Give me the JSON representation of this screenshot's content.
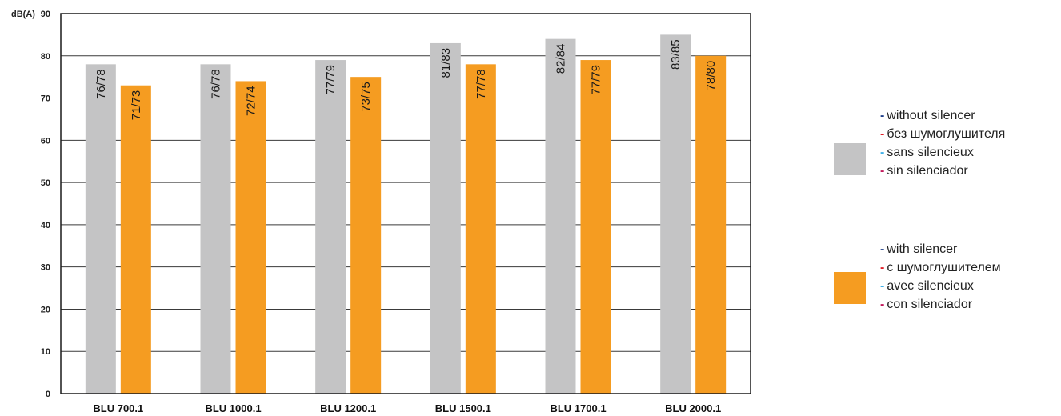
{
  "chart_data": {
    "type": "bar",
    "ylabel": "dB(A)",
    "ylim": [
      0,
      90
    ],
    "yticks": [
      0,
      10,
      20,
      30,
      40,
      50,
      60,
      70,
      80,
      90
    ],
    "grid": true,
    "legend_position": "right",
    "categories": [
      "BLU 700.1",
      "BLU 1000.1",
      "BLU 1200.1",
      "BLU 1500.1",
      "BLU 1700.1",
      "BLU 2000.1"
    ],
    "series": [
      {
        "color": "#c4c4c5",
        "values": [
          78,
          78,
          79,
          83,
          84,
          85
        ],
        "labels": [
          "76/78",
          "76/78",
          "77/79",
          "81/83",
          "82/84",
          "83/85"
        ]
      },
      {
        "color": "#f59c21",
        "values": [
          73,
          74,
          75,
          78,
          79,
          80
        ],
        "labels": [
          "71/73",
          "72/74",
          "73/75",
          "77/78",
          "77/79",
          "78/80"
        ]
      }
    ]
  },
  "legend": [
    {
      "color": "#c4c4c5",
      "lines": [
        {
          "dash": "-",
          "dash_color": "#1f3f8a",
          "text": "without silencer"
        },
        {
          "dash": "-",
          "dash_color": "#e0202a",
          "text": "без шумоглушителя"
        },
        {
          "dash": "-",
          "dash_color": "#40b0e8",
          "text": "sans silencieux"
        },
        {
          "dash": "-",
          "dash_color": "#c2185b",
          "text": "sin silenciador"
        }
      ]
    },
    {
      "color": "#f59c21",
      "lines": [
        {
          "dash": "-",
          "dash_color": "#1f3f8a",
          "text": "with silencer"
        },
        {
          "dash": "-",
          "dash_color": "#e0202a",
          "text": "с шумоглушителем"
        },
        {
          "dash": "-",
          "dash_color": "#40b0e8",
          "text": "avec silencieux"
        },
        {
          "dash": "-",
          "dash_color": "#c2185b",
          "text": "con silenciador"
        }
      ]
    }
  ]
}
